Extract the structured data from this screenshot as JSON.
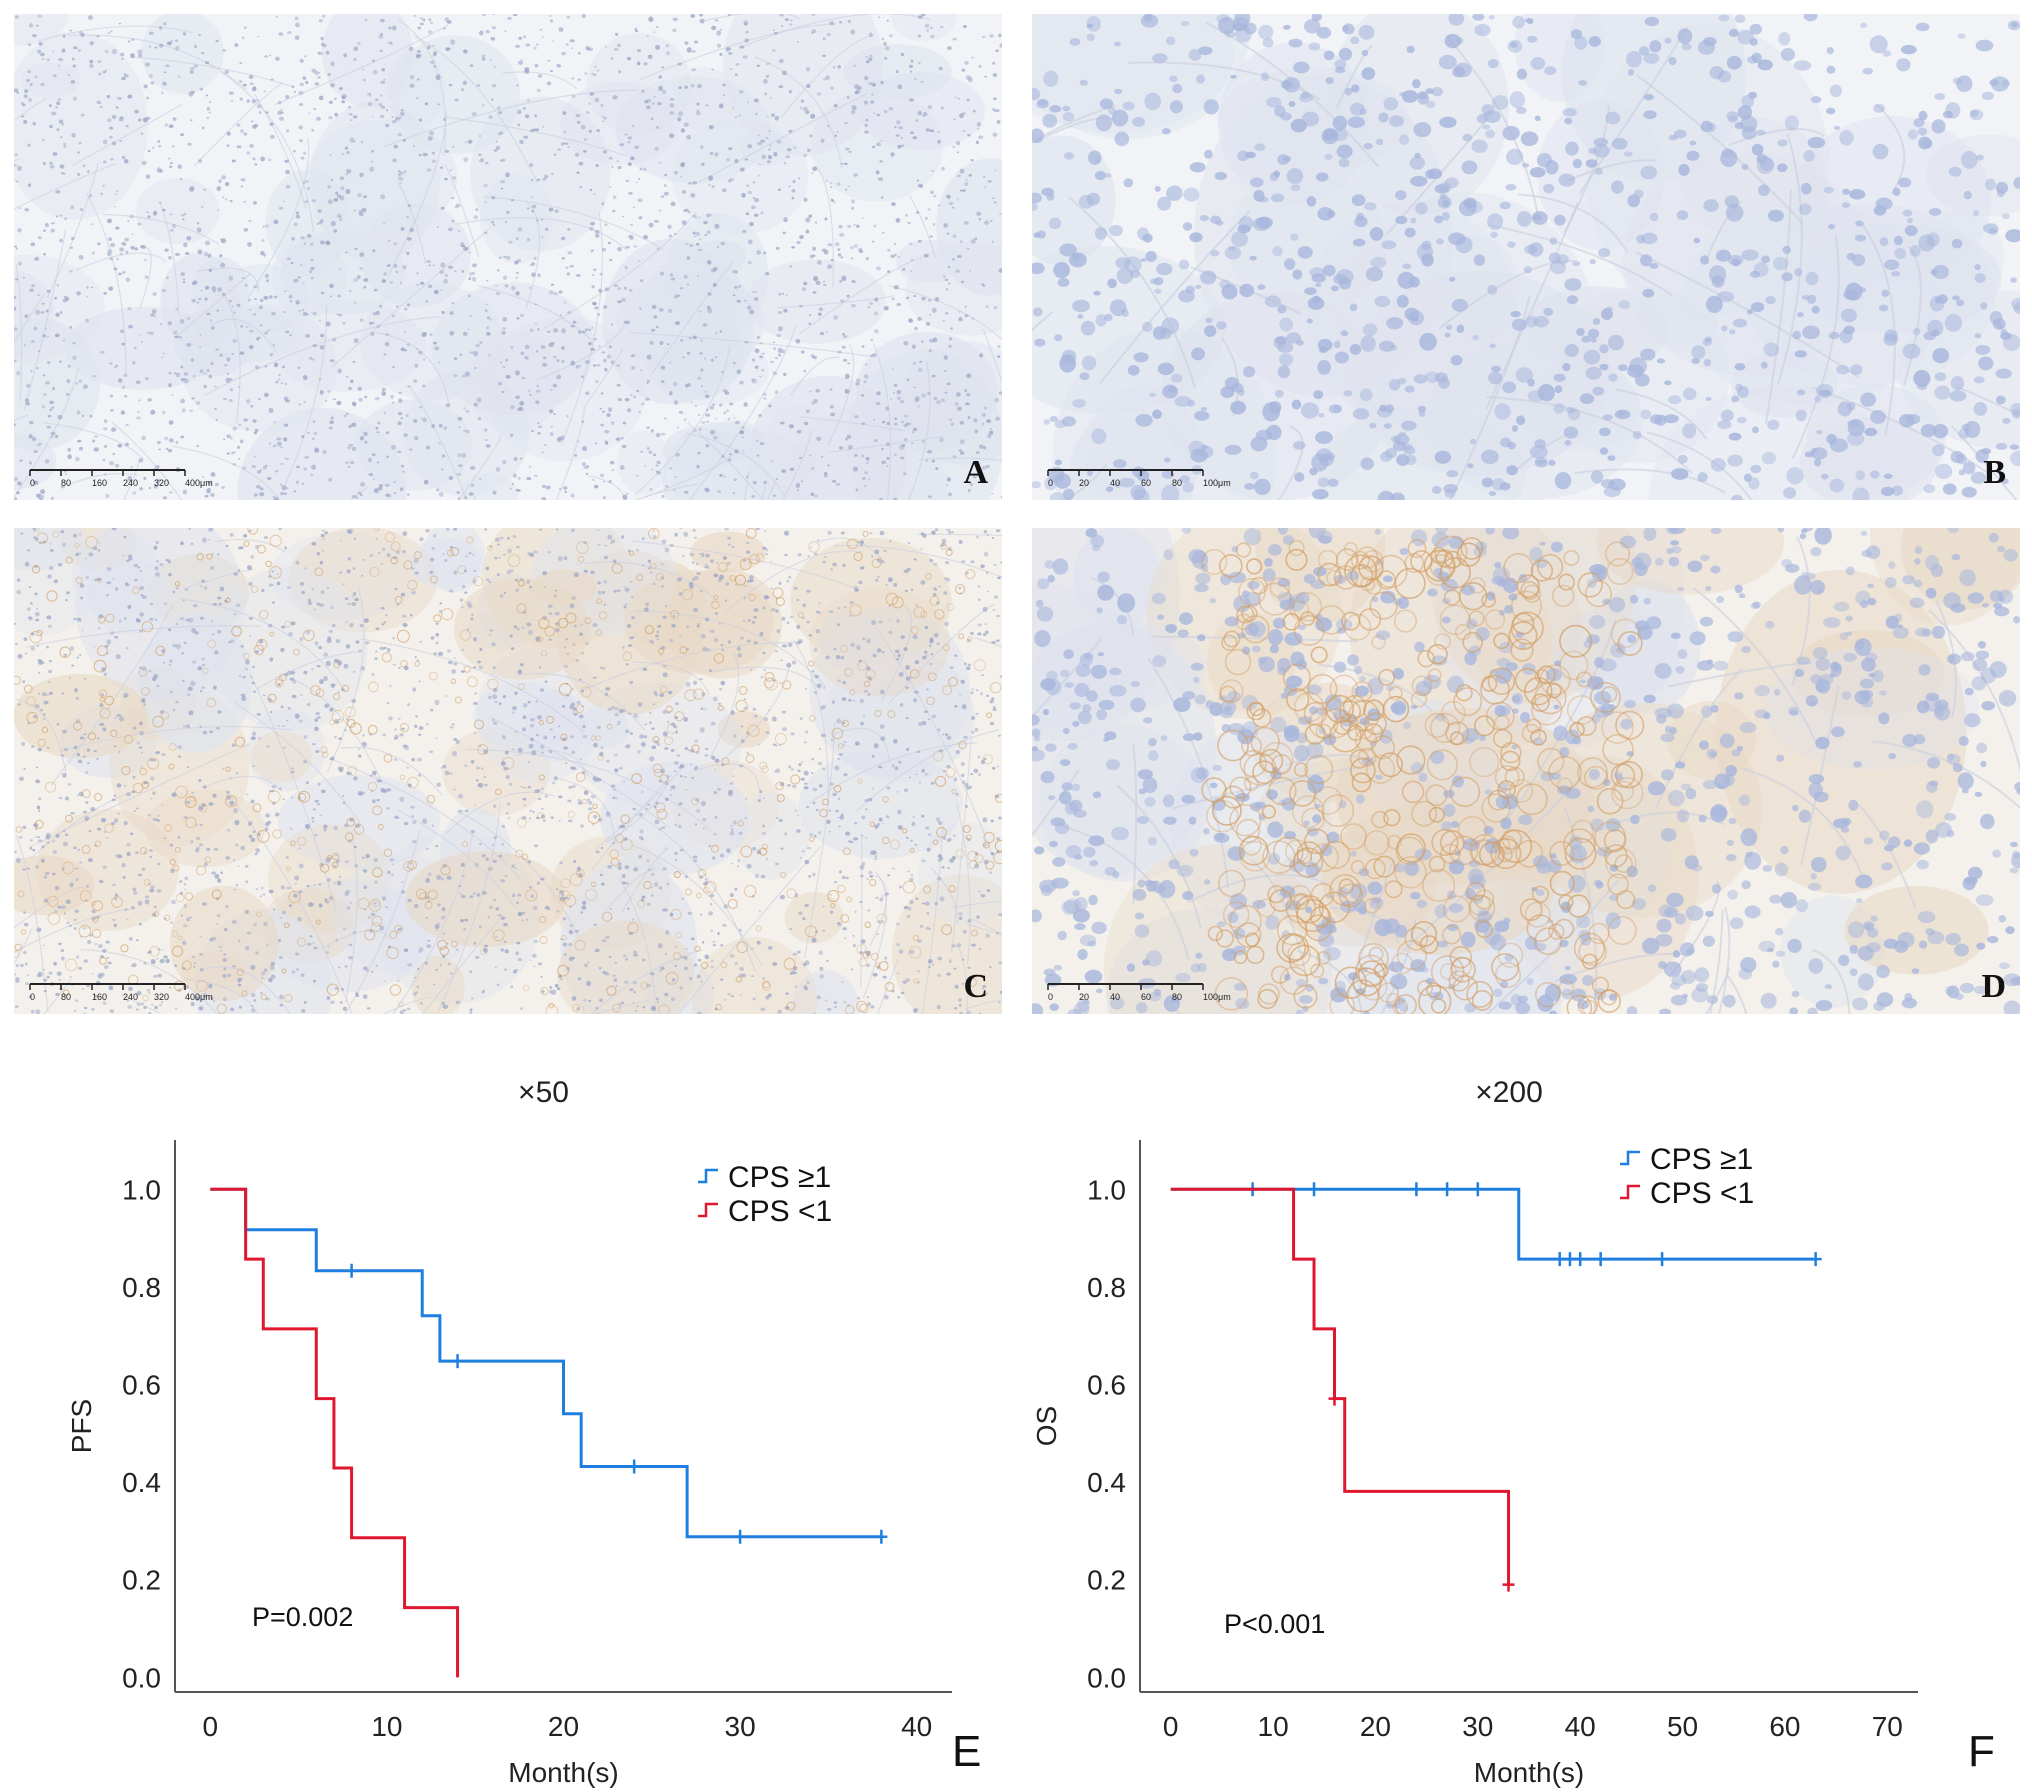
{
  "panels": [
    {
      "letter": "A",
      "scale_ticks": [
        "0",
        "80",
        "160",
        "240",
        "320",
        "400μm"
      ],
      "stain": "light"
    },
    {
      "letter": "B",
      "scale_ticks": [
        "0",
        "20",
        "40",
        "60",
        "80",
        "100μm"
      ],
      "stain": "light-hi"
    },
    {
      "letter": "C",
      "scale_ticks": [
        "0",
        "80",
        "160",
        "240",
        "320",
        "400μm"
      ],
      "stain": "brown"
    },
    {
      "letter": "D",
      "scale_ticks": [
        "0",
        "20",
        "40",
        "60",
        "80",
        "100μm"
      ],
      "stain": "brown-hi"
    }
  ],
  "colors": {
    "cps_ge1": "#1f7fe0",
    "cps_lt1": "#e0182f",
    "axis": "#555555"
  },
  "chart_data": [
    {
      "type": "line",
      "id": "E",
      "letter": "E",
      "title": "×50",
      "xlabel": "Month(s)",
      "ylabel": "PFS",
      "xlim": [
        -2,
        42
      ],
      "ylim": [
        -0.03,
        1.06
      ],
      "xticks": [
        0,
        10,
        20,
        30,
        40
      ],
      "yticks": [
        0.0,
        0.2,
        0.4,
        0.6,
        0.8,
        1.0
      ],
      "pvalue": "P=0.002",
      "legend_position": "top-right",
      "series": [
        {
          "name": "CPS ≥1",
          "color": "#1f7fe0",
          "steps": [
            [
              0,
              1.0
            ],
            [
              2,
              0.917
            ],
            [
              6,
              0.833
            ],
            [
              12,
              0.741
            ],
            [
              13,
              0.648
            ],
            [
              20,
              0.54
            ],
            [
              21,
              0.432
            ],
            [
              27,
              0.288
            ],
            [
              38,
              0.288
            ]
          ],
          "censors": [
            [
              8,
              0.833
            ],
            [
              14,
              0.648
            ],
            [
              24,
              0.432
            ],
            [
              30,
              0.288
            ],
            [
              38,
              0.288
            ]
          ]
        },
        {
          "name": "CPS <1",
          "color": "#e0182f",
          "steps": [
            [
              0,
              1.0
            ],
            [
              2,
              0.857
            ],
            [
              3,
              0.714
            ],
            [
              6,
              0.571
            ],
            [
              7,
              0.429
            ],
            [
              8,
              0.286
            ],
            [
              11,
              0.143
            ],
            [
              14,
              0.0
            ]
          ],
          "censors": []
        }
      ]
    },
    {
      "type": "line",
      "id": "F",
      "letter": "F",
      "title": "×200",
      "xlabel": "Month(s)",
      "ylabel": "OS",
      "xlim": [
        -3,
        73
      ],
      "ylim": [
        -0.03,
        1.06
      ],
      "xticks": [
        0,
        10,
        20,
        30,
        40,
        50,
        60,
        70
      ],
      "yticks": [
        0.0,
        0.2,
        0.4,
        0.6,
        0.8,
        1.0
      ],
      "pvalue": "P<0.001",
      "legend_position": "top-right",
      "series": [
        {
          "name": "CPS ≥1",
          "color": "#1f7fe0",
          "steps": [
            [
              0,
              1.0
            ],
            [
              34,
              0.857
            ],
            [
              63,
              0.857
            ]
          ],
          "censors": [
            [
              8,
              1.0
            ],
            [
              14,
              1.0
            ],
            [
              24,
              1.0
            ],
            [
              27,
              1.0
            ],
            [
              30,
              1.0
            ],
            [
              38,
              0.857
            ],
            [
              39,
              0.857
            ],
            [
              40,
              0.857
            ],
            [
              42,
              0.857
            ],
            [
              48,
              0.857
            ],
            [
              63,
              0.857
            ]
          ]
        },
        {
          "name": "CPS <1",
          "color": "#e0182f",
          "steps": [
            [
              0,
              1.0
            ],
            [
              12,
              0.857
            ],
            [
              14,
              0.714
            ],
            [
              16,
              0.571
            ],
            [
              17,
              0.381
            ],
            [
              33,
              0.19
            ]
          ],
          "censors": [
            [
              16,
              0.571
            ],
            [
              33,
              0.19
            ]
          ]
        }
      ]
    }
  ]
}
